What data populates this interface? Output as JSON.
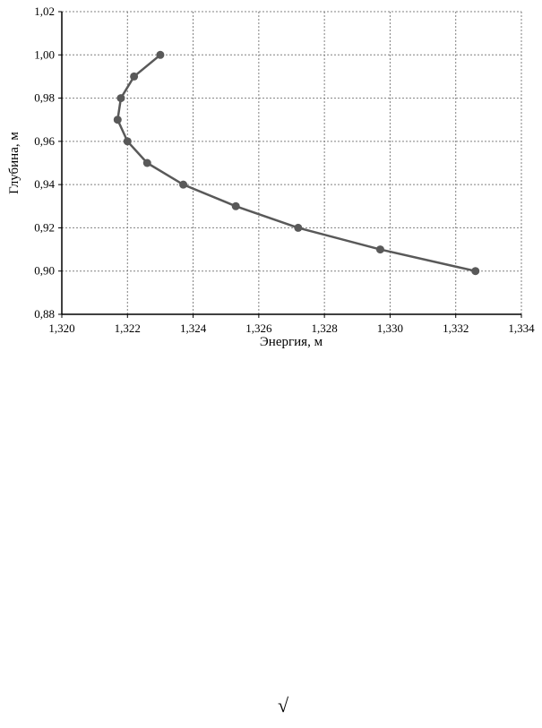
{
  "chart_data": {
    "type": "line",
    "x_label": "Энергия, м",
    "y_label": "Глубина, м",
    "x": [
      1.323,
      1.3222,
      1.3218,
      1.3217,
      1.322,
      1.3226,
      1.3237,
      1.3253,
      1.3272,
      1.3297,
      1.3326
    ],
    "series": [
      {
        "color": "#595959",
        "values": [
          1.0,
          0.99,
          0.98,
          0.97,
          0.96,
          0.95,
          0.94,
          0.93,
          0.92,
          0.91,
          0.9
        ]
      }
    ],
    "xlim": [
      1.32,
      1.334
    ],
    "xticks": [
      {
        "value": 1.32,
        "label": "1,320"
      },
      {
        "value": 1.322,
        "label": "1,322"
      },
      {
        "value": 1.324,
        "label": "1,324"
      },
      {
        "value": 1.326,
        "label": "1,326"
      },
      {
        "value": 1.328,
        "label": "1,328"
      },
      {
        "value": 1.33,
        "label": "1,330"
      },
      {
        "value": 1.332,
        "label": "1,332"
      },
      {
        "value": 1.334,
        "label": "1,334"
      }
    ],
    "ylim": [
      0.88,
      1.02
    ],
    "yticks": [
      {
        "value": 0.88,
        "label": "0,88"
      },
      {
        "value": 0.9,
        "label": "0,90"
      },
      {
        "value": 0.92,
        "label": "0,92"
      },
      {
        "value": 0.94,
        "label": "0,94"
      },
      {
        "value": 0.96,
        "label": "0,96"
      },
      {
        "value": 0.98,
        "label": "0,98"
      },
      {
        "value": 1.0,
        "label": "1,00"
      },
      {
        "value": 1.02,
        "label": "1,02"
      }
    ],
    "grid": true
  },
  "footer_symbol": "√"
}
